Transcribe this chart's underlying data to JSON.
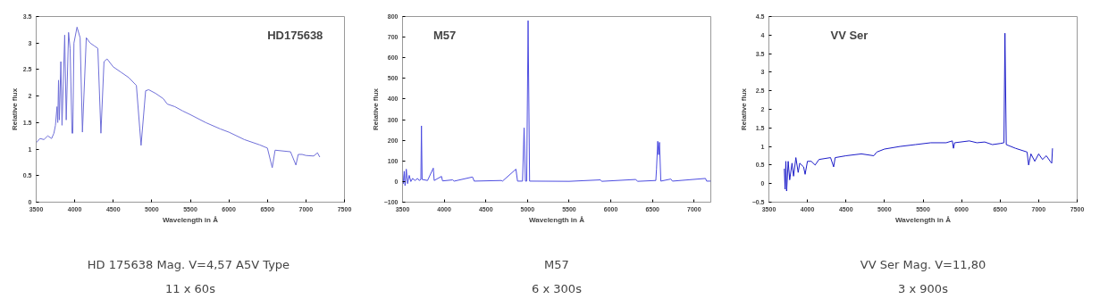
{
  "chart_data": [
    {
      "type": "line",
      "title": "HD175638",
      "xlabel": "Wavelength in Å",
      "ylabel": "Relative flux",
      "xlim": [
        3500,
        7500
      ],
      "xticks": [
        3500,
        4000,
        4500,
        5000,
        5500,
        6000,
        6500,
        7000,
        7500
      ],
      "ylim": [
        0,
        3.5
      ],
      "yticks": [
        0,
        0.5,
        1,
        1.5,
        2,
        2.5,
        3,
        3.5
      ],
      "grid": false,
      "x": [
        3500,
        3550,
        3600,
        3650,
        3700,
        3730,
        3750,
        3770,
        3780,
        3790,
        3800,
        3820,
        3835,
        3870,
        3890,
        3920,
        3940,
        3965,
        3975,
        3990,
        4030,
        4070,
        4100,
        4150,
        4200,
        4250,
        4300,
        4340,
        4380,
        4420,
        4500,
        4600,
        4700,
        4800,
        4861,
        4920,
        4960,
        5050,
        5150,
        5200,
        5300,
        5400,
        5500,
        5700,
        5890,
        6000,
        6200,
        6400,
        6500,
        6563,
        6600,
        6800,
        6870,
        6900,
        6950,
        7000,
        7100,
        7150,
        7180
      ],
      "series": [
        {
          "color": "#6f6fd8",
          "values": [
            1.12,
            1.2,
            1.18,
            1.25,
            1.2,
            1.3,
            1.45,
            1.8,
            1.5,
            2.3,
            1.55,
            2.65,
            1.45,
            3.15,
            1.55,
            3.2,
            2.9,
            1.3,
            1.3,
            3.0,
            3.3,
            3.1,
            1.32,
            3.1,
            3.0,
            2.95,
            2.9,
            1.3,
            2.65,
            2.7,
            2.55,
            2.45,
            2.35,
            2.2,
            1.07,
            2.1,
            2.12,
            2.05,
            1.95,
            1.85,
            1.8,
            1.72,
            1.65,
            1.5,
            1.38,
            1.32,
            1.18,
            1.08,
            1.02,
            0.65,
            0.98,
            0.95,
            0.7,
            0.9,
            0.9,
            0.88,
            0.87,
            0.93,
            0.85
          ]
        }
      ],
      "annotations": [
        "HD 175638 Mag. V=4,57  A5V Type",
        "11 x 60s"
      ]
    },
    {
      "type": "line",
      "title": "M57",
      "xlabel": "Wavelength in Å",
      "ylabel": "Relative flux",
      "xlim": [
        3500,
        7200
      ],
      "xticks": [
        3500,
        4000,
        4500,
        5000,
        5500,
        6000,
        6500,
        7000
      ],
      "ylim": [
        -100,
        800
      ],
      "yticks": [
        -100,
        0,
        100,
        200,
        300,
        400,
        500,
        600,
        700,
        800
      ],
      "grid": false,
      "x": [
        3500,
        3510,
        3520,
        3530,
        3545,
        3560,
        3580,
        3600,
        3620,
        3650,
        3680,
        3700,
        3720,
        3727,
        3735,
        3800,
        3869,
        3880,
        3968,
        3980,
        4101,
        4120,
        4340,
        4360,
        4686,
        4700,
        4861,
        4880,
        4940,
        4959,
        4975,
        4990,
        5007,
        5025,
        5500,
        5876,
        5890,
        6300,
        6320,
        6540,
        6548,
        6563,
        6573,
        6584,
        6600,
        6720,
        6740,
        7136,
        7150,
        7200
      ],
      "series": [
        {
          "color": "#4d4de0",
          "values": [
            40,
            -10,
            50,
            -20,
            60,
            -10,
            30,
            0,
            15,
            5,
            15,
            5,
            10,
            270,
            10,
            5,
            65,
            5,
            25,
            3,
            8,
            2,
            22,
            2,
            5,
            2,
            60,
            2,
            2,
            260,
            2,
            2,
            780,
            2,
            1,
            8,
            1,
            10,
            1,
            5,
            60,
            195,
            130,
            190,
            2,
            12,
            2,
            15,
            2,
            2
          ]
        }
      ],
      "annotations": [
        "M57",
        "6 x 300s"
      ]
    },
    {
      "type": "line",
      "title": "VV Ser",
      "xlabel": "Wavelength in Å",
      "ylabel": "Relative flux",
      "xlim": [
        3500,
        7500
      ],
      "xticks": [
        3500,
        4000,
        4500,
        5000,
        5500,
        6000,
        6500,
        7000,
        7500
      ],
      "ylim": [
        -0.5,
        4.5
      ],
      "yticks": [
        -0.5,
        0,
        0.5,
        1,
        1.5,
        2,
        2.5,
        3,
        3.5,
        4,
        4.5
      ],
      "grid": false,
      "x": [
        3700,
        3710,
        3720,
        3730,
        3750,
        3770,
        3800,
        3820,
        3850,
        3880,
        3900,
        3950,
        3970,
        4000,
        4050,
        4100,
        4150,
        4300,
        4340,
        4360,
        4500,
        4700,
        4861,
        4900,
        5000,
        5200,
        5400,
        5600,
        5800,
        5880,
        5895,
        5910,
        6100,
        6200,
        6300,
        6400,
        6500,
        6550,
        6563,
        6580,
        6700,
        6850,
        6870,
        6900,
        6950,
        7000,
        7050,
        7100,
        7150,
        7170,
        7180
      ],
      "series": [
        {
          "color": "#1c1cc8",
          "values": [
            0.4,
            -0.15,
            0.6,
            -0.2,
            0.6,
            0.1,
            0.55,
            0.2,
            0.7,
            0.3,
            0.55,
            0.45,
            0.25,
            0.6,
            0.6,
            0.5,
            0.65,
            0.7,
            0.45,
            0.7,
            0.75,
            0.8,
            0.75,
            0.85,
            0.93,
            1.0,
            1.05,
            1.1,
            1.1,
            1.15,
            0.95,
            1.1,
            1.15,
            1.1,
            1.12,
            1.05,
            1.08,
            1.1,
            4.05,
            1.05,
            0.95,
            0.85,
            0.5,
            0.8,
            0.6,
            0.8,
            0.65,
            0.75,
            0.6,
            0.55,
            0.95
          ]
        }
      ],
      "annotations": [
        "VV Ser Mag. V=11,80",
        "3 x 900s"
      ]
    }
  ]
}
